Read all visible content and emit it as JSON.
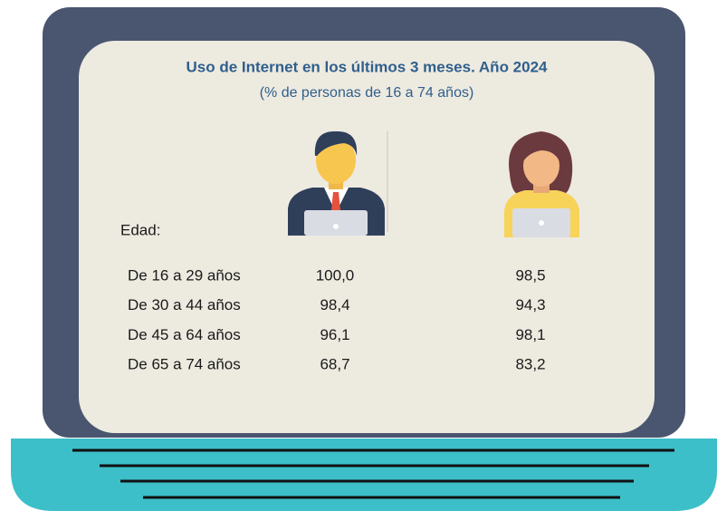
{
  "header": {
    "title": "Uso de Internet en los últimos 3 meses. Año 2024",
    "subtitle": "(% de personas de 16 a 74 años)"
  },
  "table": {
    "row_header": "Edad:",
    "rows": [
      [
        "De 16 a 29 años",
        "100,0",
        "98,5"
      ],
      [
        "De 30 a 44 años",
        "98,4",
        "94,3"
      ],
      [
        "De 45 a 64 años",
        "96,1",
        "98,1"
      ],
      [
        "De 65 a 74 años",
        "68,7",
        "83,2"
      ]
    ]
  }
}
